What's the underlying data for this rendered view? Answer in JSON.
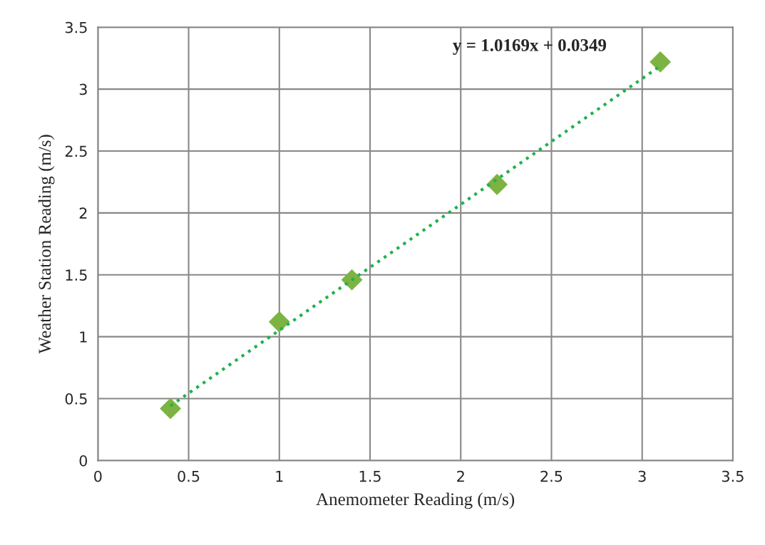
{
  "chart_data": {
    "type": "scatter",
    "xlabel": "Anemometer Reading (m/s)",
    "ylabel": "Weather Station Reading (m/s)",
    "series": [
      {
        "color": "#7cb342",
        "marker": "diamond",
        "x": [
          0.4,
          1.0,
          1.4,
          2.2,
          3.1
        ],
        "values": [
          0.42,
          1.12,
          1.46,
          2.23,
          3.22
        ]
      },
      {
        "type": "line",
        "color": "#22b14c",
        "marker": "none",
        "line_style": "dotted",
        "x": [
          0.4,
          3.1
        ],
        "values": [
          0.442,
          3.187
        ]
      }
    ],
    "annotations": [
      "y = 1.0169x + 0.0349"
    ],
    "xlim": [
      0,
      3.5
    ],
    "ylim": [
      0,
      3.5
    ],
    "xticks": [
      0,
      0.5,
      1,
      1.5,
      2,
      2.5,
      3,
      3.5
    ],
    "yticks": [
      0,
      0.5,
      1,
      1.5,
      2,
      2.5,
      3,
      3.5
    ],
    "grid": true,
    "legend": false
  }
}
